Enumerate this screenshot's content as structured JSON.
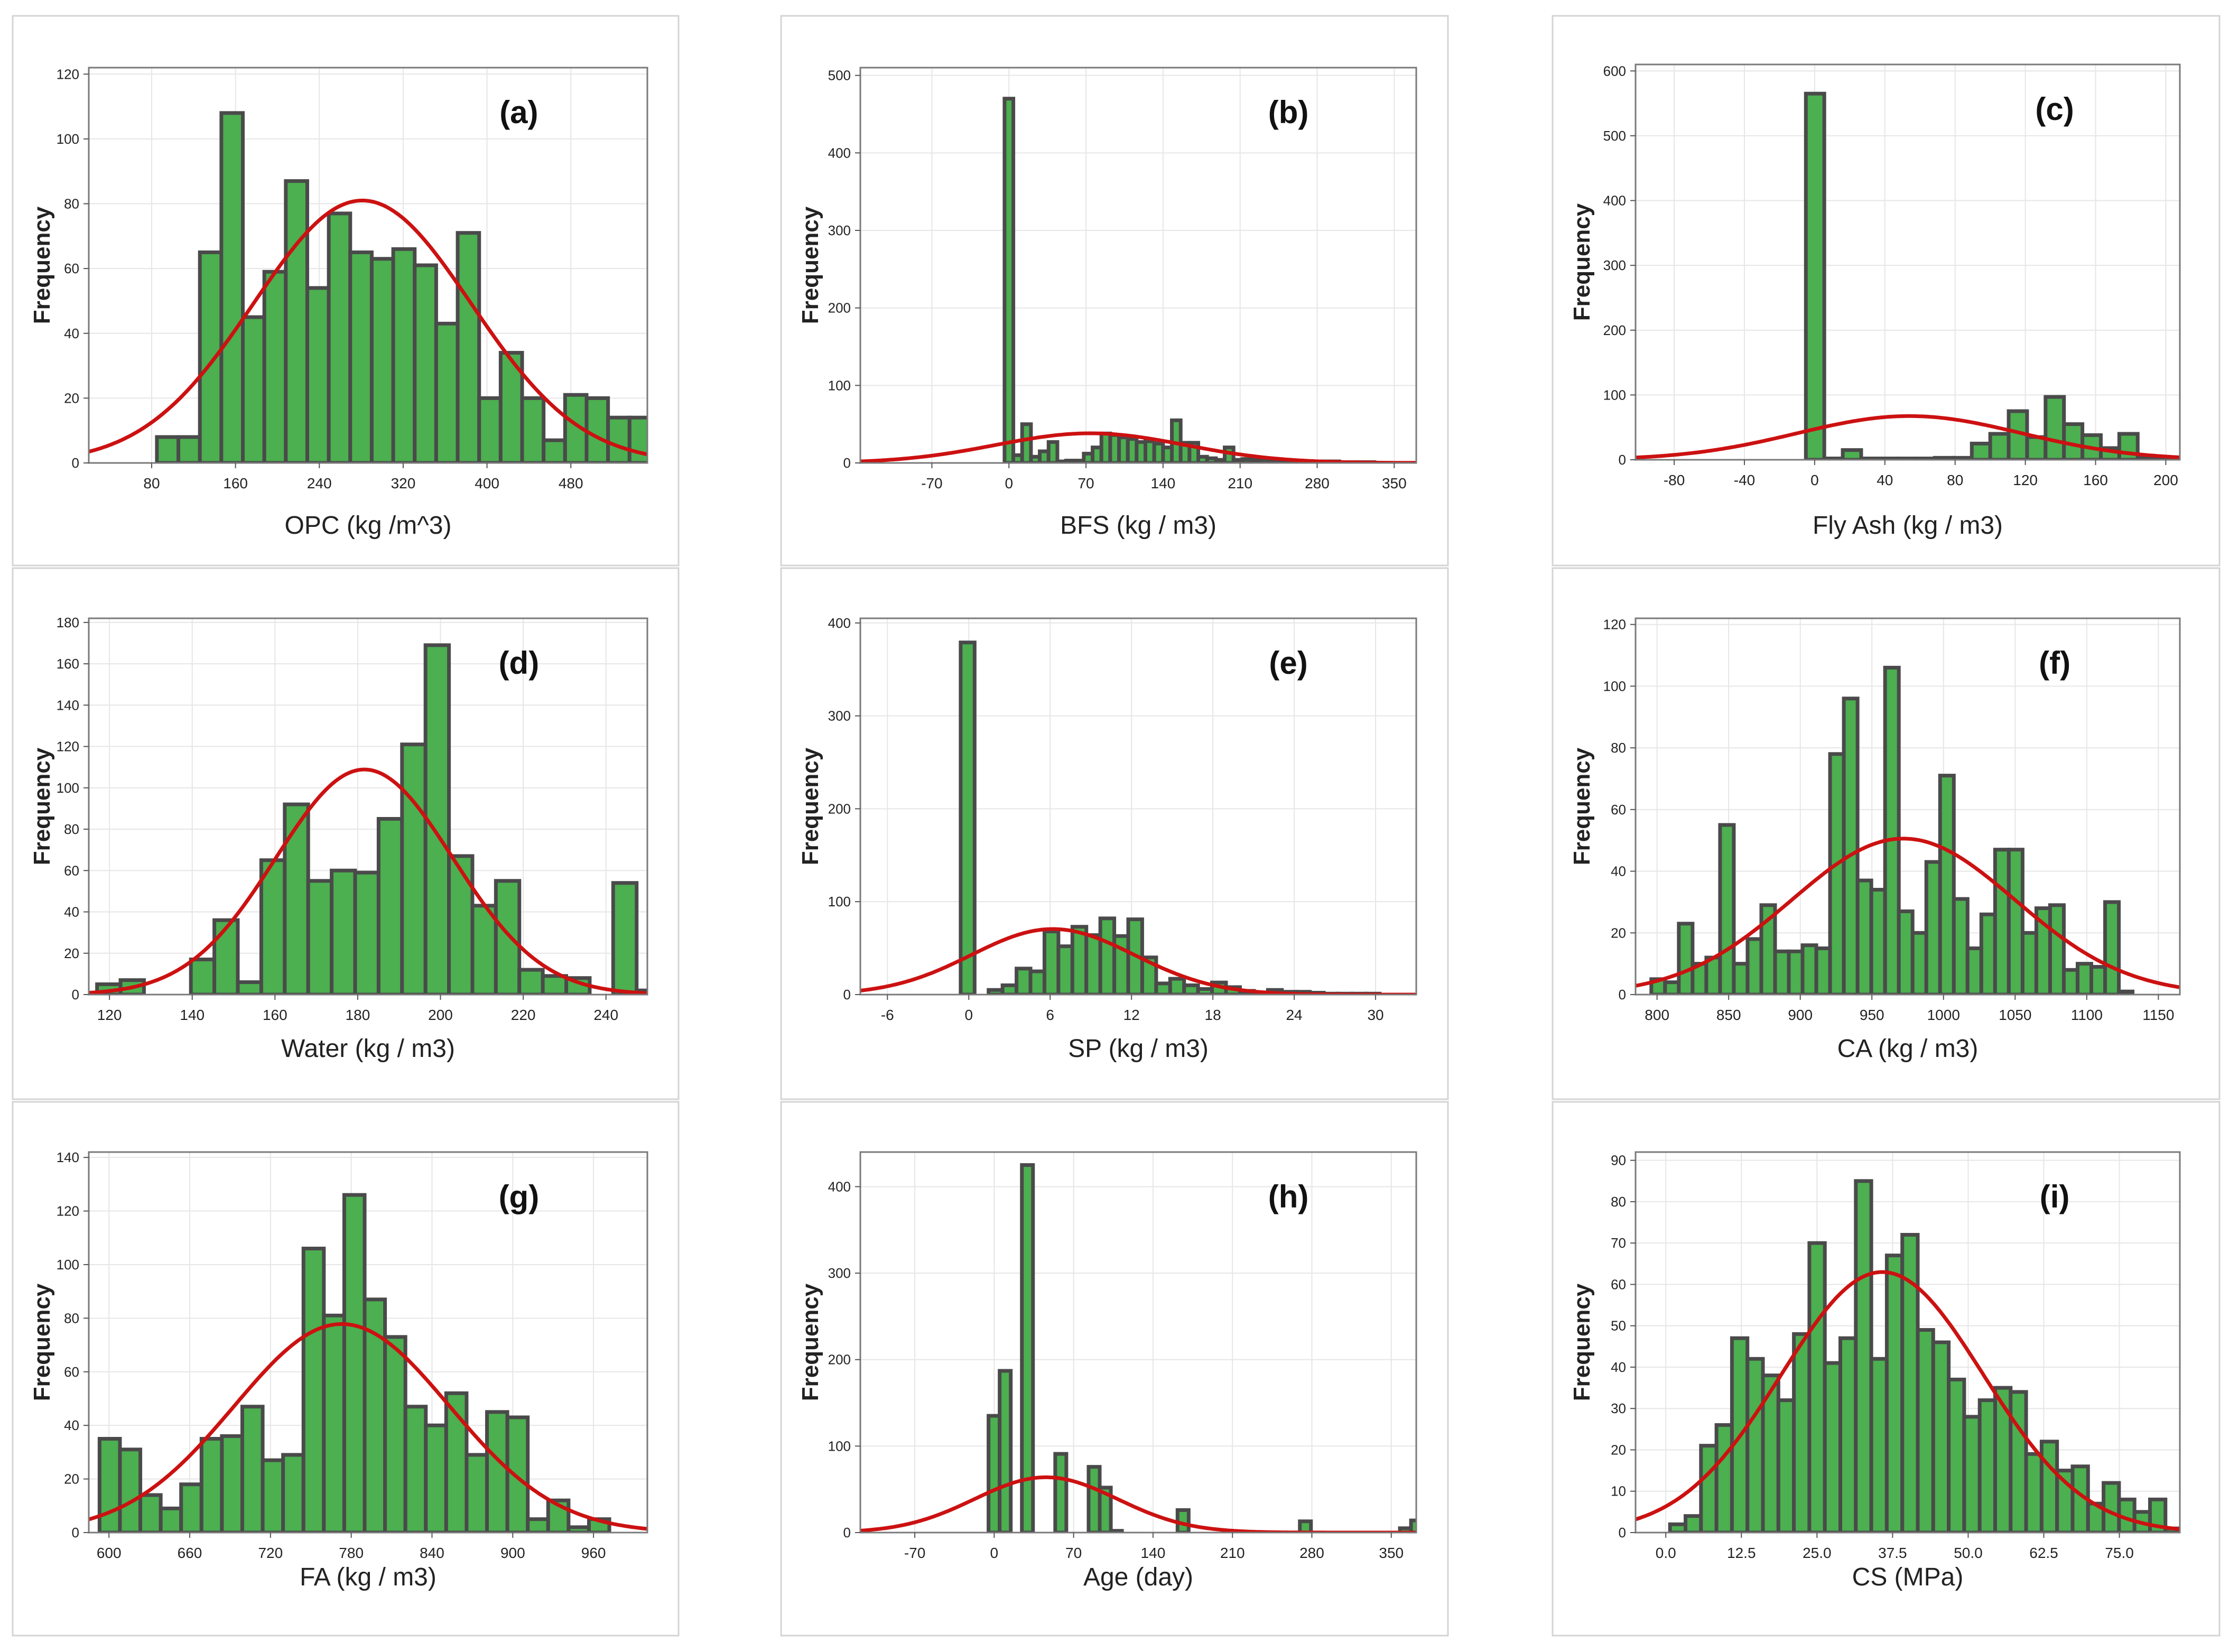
{
  "figure": {
    "bar_color": "#4caf50",
    "bar_edge_color": "#4a4a4a",
    "curve_color": "#cc1111"
  },
  "chart_data": [
    {
      "type": "bar",
      "label": "(a)",
      "xlabel": "OPC (kg /m^3)",
      "ylabel": "Frequency",
      "xlim": [
        20,
        553
      ],
      "ylim": [
        0,
        122
      ],
      "xticks": [
        80,
        160,
        240,
        320,
        400,
        480
      ],
      "xtick_labels": [
        "80",
        "160",
        "240",
        "320",
        "400",
        "480"
      ],
      "yticks": [
        0,
        20,
        40,
        60,
        80,
        100,
        120
      ],
      "bin_start": 85,
      "bin_width": 20.5,
      "values": [
        8,
        8,
        65,
        108,
        45,
        59,
        87,
        54,
        77,
        65,
        63,
        66,
        61,
        43,
        71,
        20,
        34,
        20,
        7,
        21,
        20,
        14,
        14
      ],
      "normal_fit": {
        "mean": 281,
        "sd": 104,
        "count": 1030
      }
    },
    {
      "type": "bar",
      "label": "(b)",
      "xlabel": "BFS (kg / m3)",
      "ylabel": "Frequency",
      "xlim": [
        -135,
        370
      ],
      "ylim": [
        0,
        510
      ],
      "xticks": [
        -70,
        0,
        70,
        140,
        210,
        280,
        350
      ],
      "xtick_labels": [
        "-70",
        "0",
        "70",
        "140",
        "210",
        "280",
        "350"
      ],
      "yticks": [
        0,
        100,
        200,
        300,
        400,
        500
      ],
      "bin_start": -4,
      "bin_width": 8,
      "values": [
        470,
        10,
        50,
        8,
        15,
        27,
        2,
        3,
        3,
        12,
        20,
        38,
        36,
        33,
        31,
        27,
        28,
        25,
        20,
        55,
        26,
        26,
        8,
        6,
        4,
        20,
        4,
        5,
        4,
        5,
        2,
        3,
        2,
        2,
        1,
        2,
        2,
        2,
        1,
        1,
        1,
        1
      ],
      "normal_fit": {
        "mean": 74,
        "sd": 86,
        "count": 1030
      }
    },
    {
      "type": "bar",
      "label": "(c)",
      "xlabel": "Fly Ash (kg / m3)",
      "ylabel": "Frequency",
      "xlim": [
        -102,
        208
      ],
      "ylim": [
        0,
        610
      ],
      "xticks": [
        -80,
        -40,
        0,
        40,
        80,
        120,
        160,
        200
      ],
      "xtick_labels": [
        "-80",
        "-40",
        "0",
        "40",
        "80",
        "120",
        "160",
        "200"
      ],
      "yticks": [
        0,
        100,
        200,
        300,
        400,
        500,
        600
      ],
      "bin_start": -5,
      "bin_width": 10.5,
      "values": [
        565,
        2,
        15,
        2,
        2,
        2,
        2,
        3,
        3,
        25,
        40,
        75,
        35,
        97,
        55,
        38,
        18,
        40,
        5,
        3,
        2
      ],
      "normal_fit": {
        "mean": 54,
        "sd": 64,
        "count": 1030
      }
    },
    {
      "type": "bar",
      "label": "(d)",
      "xlabel": "Water  (kg / m3)",
      "ylabel": "Frequency",
      "xlim": [
        115,
        250
      ],
      "ylim": [
        0,
        182
      ],
      "xticks": [
        120,
        140,
        160,
        180,
        200,
        220,
        240
      ],
      "xtick_labels": [
        "120",
        "140",
        "160",
        "180",
        "200",
        "220",
        "240"
      ],
      "yticks": [
        0,
        20,
        40,
        60,
        80,
        100,
        120,
        140,
        160,
        180
      ],
      "bin_start": 117,
      "bin_width": 5.67,
      "values": [
        5,
        7,
        0,
        0,
        17,
        36,
        6,
        65,
        92,
        55,
        60,
        59,
        85,
        121,
        169,
        67,
        43,
        55,
        12,
        9,
        8,
        0,
        54,
        2,
        2
      ],
      "normal_fit": {
        "mean": 181.6,
        "sd": 21.4,
        "count": 1030
      }
    },
    {
      "type": "bar",
      "label": "(e)",
      "xlabel": "SP (kg / m3)",
      "ylabel": "Frequency",
      "xlim": [
        -8,
        33
      ],
      "ylim": [
        0,
        405
      ],
      "xticks": [
        -6,
        0,
        6,
        12,
        18,
        24,
        30
      ],
      "xtick_labels": [
        "-6",
        "0",
        "6",
        "12",
        "18",
        "24",
        "30"
      ],
      "yticks": [
        0,
        100,
        200,
        300,
        400
      ],
      "bin_start": -0.6,
      "bin_width": 1.03,
      "values": [
        379,
        0,
        5,
        10,
        28,
        25,
        68,
        52,
        73,
        64,
        82,
        63,
        81,
        40,
        12,
        17,
        10,
        6,
        13,
        8,
        4,
        2,
        5,
        3,
        3,
        2,
        1,
        1,
        1,
        1,
        0,
        0,
        0,
        2
      ],
      "normal_fit": {
        "mean": 6.2,
        "sd": 6.0,
        "count": 1030
      }
    },
    {
      "type": "bar",
      "label": "(f)",
      "xlabel": "CA (kg / m3)",
      "ylabel": "Frequency",
      "xlim": [
        785,
        1165
      ],
      "ylim": [
        0,
        122
      ],
      "xticks": [
        800,
        850,
        900,
        950,
        1000,
        1050,
        1100,
        1150
      ],
      "xtick_labels": [
        "800",
        "850",
        "900",
        "950",
        "1000",
        "1050",
        "1100",
        "1150"
      ],
      "yticks": [
        0,
        20,
        40,
        60,
        80,
        100,
        120
      ],
      "bin_start": 796,
      "bin_width": 9.6,
      "values": [
        5,
        4,
        23,
        10,
        12,
        55,
        10,
        18,
        29,
        14,
        14,
        16,
        15,
        78,
        96,
        37,
        34,
        106,
        27,
        20,
        43,
        71,
        31,
        15,
        26,
        47,
        47,
        20,
        28,
        29,
        8,
        10,
        9,
        30,
        1
      ],
      "normal_fit": {
        "mean": 972,
        "sd": 78,
        "count": 1030
      }
    },
    {
      "type": "bar",
      "label": "(g)",
      "xlabel": "FA (kg / m3)",
      "ylabel": "Frequency",
      "xlim": [
        585,
        1000
      ],
      "ylim": [
        0,
        142
      ],
      "xticks": [
        600,
        660,
        720,
        780,
        840,
        900,
        960
      ],
      "xtick_labels": [
        "600",
        "660",
        "720",
        "780",
        "840",
        "900",
        "960"
      ],
      "yticks": [
        0,
        20,
        40,
        60,
        80,
        100,
        120,
        140
      ],
      "bin_start": 593,
      "bin_width": 15.15,
      "values": [
        35,
        31,
        14,
        9,
        18,
        35,
        36,
        47,
        27,
        29,
        106,
        81,
        126,
        87,
        73,
        47,
        40,
        52,
        29,
        45,
        43,
        5,
        12,
        2,
        5
      ],
      "normal_fit": {
        "mean": 773,
        "sd": 80,
        "count": 1030
      }
    },
    {
      "type": "bar",
      "label": "(h)",
      "xlabel": "Age (day)",
      "ylabel": "Frequency",
      "xlim": [
        -118,
        372
      ],
      "ylim": [
        0,
        440
      ],
      "xticks": [
        -70,
        0,
        70,
        140,
        210,
        280,
        350
      ],
      "xtick_labels": [
        "-70",
        "0",
        "70",
        "140",
        "210",
        "280",
        "350"
      ],
      "yticks": [
        0,
        100,
        200,
        300,
        400
      ],
      "bin_start": -5,
      "bin_width": 9.8,
      "values": [
        135,
        187,
        0,
        425,
        0,
        0,
        91,
        0,
        0,
        76,
        52,
        2,
        0,
        0,
        0,
        0,
        0,
        26,
        0,
        0,
        0,
        0,
        0,
        0,
        0,
        0,
        0,
        0,
        13,
        0,
        0,
        0,
        0,
        0,
        0,
        0,
        0,
        5,
        14
      ],
      "normal_fit": {
        "mean": 45.7,
        "sd": 63,
        "count": 1030
      }
    },
    {
      "type": "bar",
      "label": "(i)",
      "xlabel": "CS (MPa)",
      "ylabel": "Frequency",
      "xlim": [
        -5,
        85
      ],
      "ylim": [
        0,
        92
      ],
      "xticks": [
        0,
        12.5,
        25,
        37.5,
        50,
        62.5,
        75
      ],
      "xtick_labels": [
        "0.0",
        "12.5",
        "25.0",
        "37.5",
        "50.0",
        "62.5",
        "75.0"
      ],
      "yticks": [
        0,
        10,
        20,
        30,
        40,
        50,
        60,
        70,
        80,
        90
      ],
      "bin_start": 0.7,
      "bin_width": 2.56,
      "values": [
        2,
        4,
        21,
        26,
        47,
        42,
        38,
        32,
        48,
        70,
        41,
        47,
        85,
        42,
        67,
        72,
        49,
        46,
        37,
        28,
        32,
        35,
        34,
        19,
        22,
        15,
        16,
        7,
        12,
        8,
        5,
        8,
        1
      ],
      "normal_fit": {
        "mean": 35.8,
        "sd": 16.7,
        "count": 1030
      }
    }
  ]
}
